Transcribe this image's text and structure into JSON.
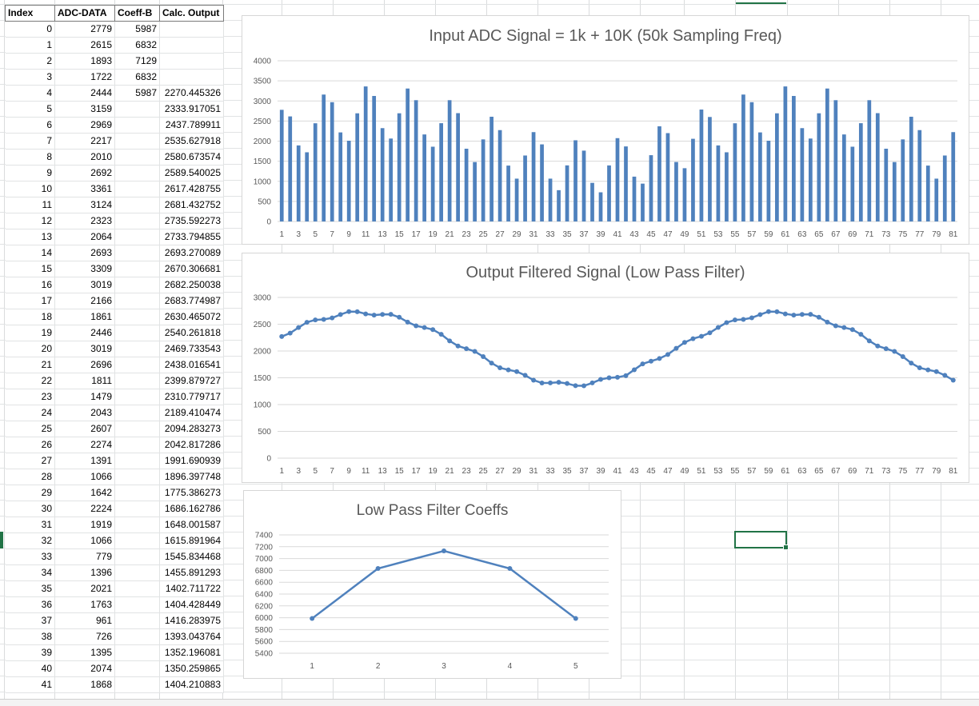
{
  "sheet": {
    "headers": {
      "index": "Index",
      "adc": "ADC-DATA",
      "coeff": "Coeff-B",
      "output": "Calc. Output"
    },
    "rows": [
      {
        "index": "0",
        "adc": "2779",
        "coeff": "5987",
        "output": ""
      },
      {
        "index": "1",
        "adc": "2615",
        "coeff": "6832",
        "output": ""
      },
      {
        "index": "2",
        "adc": "1893",
        "coeff": "7129",
        "output": ""
      },
      {
        "index": "3",
        "adc": "1722",
        "coeff": "6832",
        "output": ""
      },
      {
        "index": "4",
        "adc": "2444",
        "coeff": "5987",
        "output": "2270.445326"
      },
      {
        "index": "5",
        "adc": "3159",
        "coeff": "",
        "output": "2333.917051"
      },
      {
        "index": "6",
        "adc": "2969",
        "coeff": "",
        "output": "2437.789911"
      },
      {
        "index": "7",
        "adc": "2217",
        "coeff": "",
        "output": "2535.627918"
      },
      {
        "index": "8",
        "adc": "2010",
        "coeff": "",
        "output": "2580.673574"
      },
      {
        "index": "9",
        "adc": "2692",
        "coeff": "",
        "output": "2589.540025"
      },
      {
        "index": "10",
        "adc": "3361",
        "coeff": "",
        "output": "2617.428755"
      },
      {
        "index": "11",
        "adc": "3124",
        "coeff": "",
        "output": "2681.432752"
      },
      {
        "index": "12",
        "adc": "2323",
        "coeff": "",
        "output": "2735.592273"
      },
      {
        "index": "13",
        "adc": "2064",
        "coeff": "",
        "output": "2733.794855"
      },
      {
        "index": "14",
        "adc": "2693",
        "coeff": "",
        "output": "2693.270089"
      },
      {
        "index": "15",
        "adc": "3309",
        "coeff": "",
        "output": "2670.306681"
      },
      {
        "index": "16",
        "adc": "3019",
        "coeff": "",
        "output": "2682.250038"
      },
      {
        "index": "17",
        "adc": "2166",
        "coeff": "",
        "output": "2683.774987"
      },
      {
        "index": "18",
        "adc": "1861",
        "coeff": "",
        "output": "2630.465072"
      },
      {
        "index": "19",
        "adc": "2446",
        "coeff": "",
        "output": "2540.261818"
      },
      {
        "index": "20",
        "adc": "3019",
        "coeff": "",
        "output": "2469.733543"
      },
      {
        "index": "21",
        "adc": "2696",
        "coeff": "",
        "output": "2438.016541"
      },
      {
        "index": "22",
        "adc": "1811",
        "coeff": "",
        "output": "2399.879727"
      },
      {
        "index": "23",
        "adc": "1479",
        "coeff": "",
        "output": "2310.779717"
      },
      {
        "index": "24",
        "adc": "2043",
        "coeff": "",
        "output": "2189.410474"
      },
      {
        "index": "25",
        "adc": "2607",
        "coeff": "",
        "output": "2094.283273"
      },
      {
        "index": "26",
        "adc": "2274",
        "coeff": "",
        "output": "2042.817286"
      },
      {
        "index": "27",
        "adc": "1391",
        "coeff": "",
        "output": "1991.690939"
      },
      {
        "index": "28",
        "adc": "1066",
        "coeff": "",
        "output": "1896.397748"
      },
      {
        "index": "29",
        "adc": "1642",
        "coeff": "",
        "output": "1775.386273"
      },
      {
        "index": "30",
        "adc": "2224",
        "coeff": "",
        "output": "1686.162786"
      },
      {
        "index": "31",
        "adc": "1919",
        "coeff": "",
        "output": "1648.001587"
      },
      {
        "index": "32",
        "adc": "1066",
        "coeff": "",
        "output": "1615.891964"
      },
      {
        "index": "33",
        "adc": "779",
        "coeff": "",
        "output": "1545.834468"
      },
      {
        "index": "34",
        "adc": "1396",
        "coeff": "",
        "output": "1455.891293"
      },
      {
        "index": "35",
        "adc": "2021",
        "coeff": "",
        "output": "1402.711722"
      },
      {
        "index": "36",
        "adc": "1763",
        "coeff": "",
        "output": "1404.428449"
      },
      {
        "index": "37",
        "adc": "961",
        "coeff": "",
        "output": "1416.283975"
      },
      {
        "index": "38",
        "adc": "726",
        "coeff": "",
        "output": "1393.043764"
      },
      {
        "index": "39",
        "adc": "1395",
        "coeff": "",
        "output": "1352.196081"
      },
      {
        "index": "40",
        "adc": "2074",
        "coeff": "",
        "output": "1350.259865"
      },
      {
        "index": "41",
        "adc": "1868",
        "coeff": "",
        "output": "1404.210883"
      }
    ]
  },
  "chart_data": [
    {
      "type": "bar",
      "title": "Input ADC Signal = 1k + 10K (50k Sampling Freq)",
      "color": "#4f81bd",
      "ylim": [
        0,
        4000
      ],
      "yticks": [
        "0",
        "500",
        "1000",
        "1500",
        "2000",
        "2500",
        "3000",
        "3500",
        "4000"
      ],
      "xticks_shown": "odd categories 1–81",
      "values": [
        2779,
        2615,
        1893,
        1722,
        2444,
        3159,
        2969,
        2217,
        2010,
        2692,
        3361,
        3124,
        2323,
        2064,
        2693,
        3309,
        3019,
        2166,
        1861,
        2446,
        3019,
        2696,
        1811,
        1479,
        2043,
        2607,
        2274,
        1391,
        1066,
        1642,
        2224,
        1919,
        1066,
        779,
        1396,
        2021,
        1763,
        961,
        726,
        1395,
        2074,
        1868,
        1116,
        942,
        1650,
        2369,
        2199,
        1480,
        1326,
        2058,
        2786,
        2601,
        1893,
        1722,
        2444,
        3159,
        2969,
        2217,
        2010,
        2692,
        3361,
        3124,
        2323,
        2064,
        2693,
        3309,
        3019,
        2166,
        1861,
        2446,
        3019,
        2696,
        1811,
        1479,
        2043,
        2607,
        2274,
        1391,
        1066,
        1642,
        2224
      ],
      "grid": true
    },
    {
      "type": "line",
      "title": "Output Filtered Signal (Low Pass Filter)",
      "color": "#4f81bd",
      "ylim": [
        0,
        3000
      ],
      "yticks": [
        "0",
        "500",
        "1000",
        "1500",
        "2000",
        "2500",
        "3000"
      ],
      "xticks_shown": "odd categories 1–81",
      "values": [
        2270,
        2334,
        2438,
        2536,
        2581,
        2590,
        2617,
        2681,
        2736,
        2734,
        2693,
        2670,
        2682,
        2684,
        2630,
        2540,
        2470,
        2438,
        2400,
        2311,
        2189,
        2094,
        2043,
        1992,
        1896,
        1775,
        1686,
        1648,
        1616,
        1546,
        1456,
        1403,
        1404,
        1416,
        1393,
        1352,
        1350,
        1404,
        1470,
        1500,
        1510,
        1540,
        1650,
        1760,
        1810,
        1860,
        1935,
        2050,
        2160,
        2230,
        2275,
        2340,
        2440,
        2530,
        2580,
        2590,
        2620,
        2680,
        2736,
        2734,
        2693,
        2670,
        2682,
        2684,
        2630,
        2540,
        2470,
        2438,
        2400,
        2311,
        2189,
        2094,
        2043,
        1992,
        1896,
        1775,
        1686,
        1648,
        1616,
        1546,
        1456
      ],
      "markers": true,
      "grid": true
    },
    {
      "type": "line",
      "title": "Low Pass Filter Coeffs",
      "color": "#4f81bd",
      "categories": [
        "1",
        "2",
        "3",
        "4",
        "5"
      ],
      "values": [
        5987,
        6832,
        7129,
        6832,
        5987
      ],
      "ylim": [
        5400,
        7400
      ],
      "yticks": [
        "5400",
        "5600",
        "5800",
        "6000",
        "6200",
        "6400",
        "6600",
        "6800",
        "7000",
        "7200",
        "7400"
      ],
      "markers": true,
      "grid": true
    }
  ]
}
